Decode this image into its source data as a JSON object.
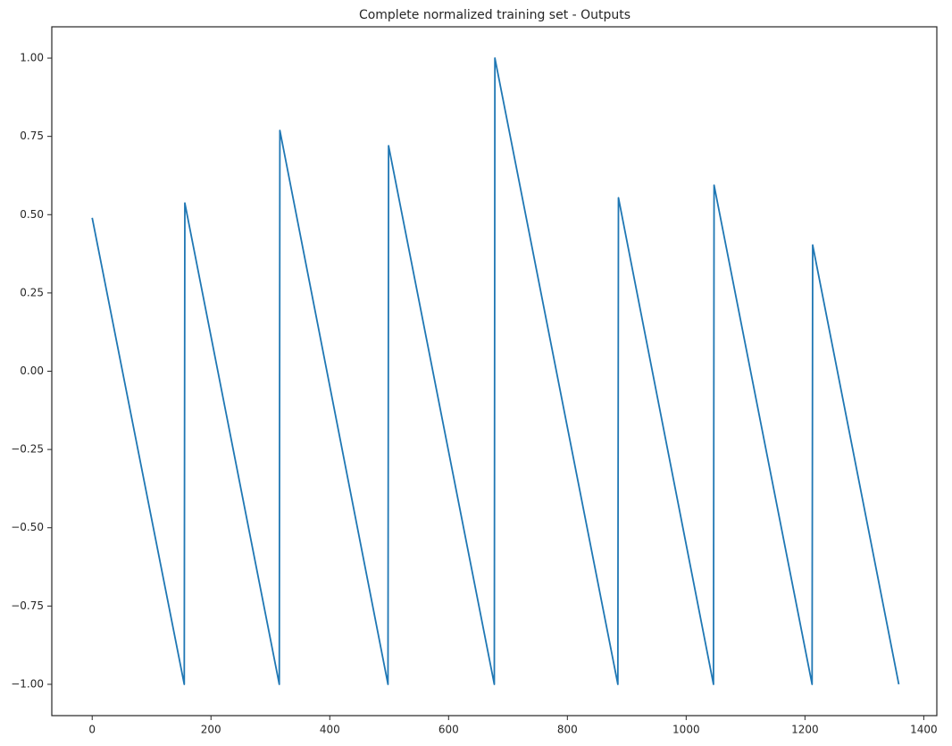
{
  "chart_data": {
    "type": "line",
    "title": "Complete normalized training set - Outputs",
    "x": [
      0,
      155,
      156,
      315,
      316,
      498,
      499,
      677,
      678,
      885,
      886,
      1046,
      1047,
      1212,
      1213,
      1358
    ],
    "series": [
      {
        "name": "Outputs",
        "color": "#1f77b4",
        "values": [
          0.49,
          -1.0,
          0.537,
          -1.0,
          0.769,
          -1.0,
          0.72,
          -1.0,
          1.0,
          -1.0,
          0.554,
          -1.0,
          0.594,
          -1.0,
          0.403,
          -1.0
        ]
      }
    ],
    "xlim": [
      -68,
      1422
    ],
    "ylim": [
      -1.1,
      1.1
    ],
    "xticks": [
      0,
      200,
      400,
      600,
      800,
      1000,
      1200,
      1400
    ],
    "yticks": [
      {
        "value": -1,
        "label": "−1.00"
      },
      {
        "value": -0.75,
        "label": "−0.75"
      },
      {
        "value": -0.5,
        "label": "−0.50"
      },
      {
        "value": -0.25,
        "label": "−0.25"
      },
      {
        "value": 0,
        "label": "0.00"
      },
      {
        "value": 0.25,
        "label": "0.25"
      },
      {
        "value": 0.5,
        "label": "0.50"
      },
      {
        "value": 0.75,
        "label": "0.75"
      },
      {
        "value": 1,
        "label": "1.00"
      }
    ],
    "grid": false
  }
}
